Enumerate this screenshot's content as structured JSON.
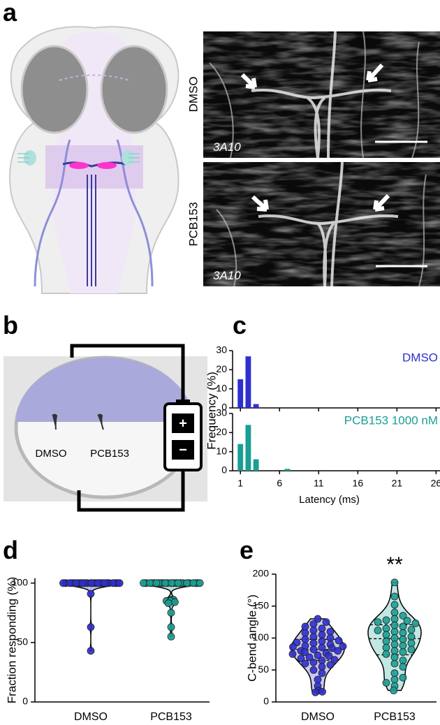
{
  "panel_labels": [
    "a",
    "b",
    "c",
    "d",
    "e"
  ],
  "panel_a": {
    "conditions": [
      "DMSO",
      "PCB153"
    ],
    "stain": "3A10"
  },
  "panel_b": {
    "fish": [
      "DMSO",
      "PCB153"
    ],
    "battery": [
      "+",
      "−"
    ]
  },
  "chart_data": [
    {
      "type": "bar",
      "xlabel": "Latency (ms)",
      "ylabel": "Frequency (%)",
      "xlim": [
        0,
        26.5
      ],
      "xticks": [
        1,
        6,
        11,
        16,
        21,
        26
      ],
      "ylim": [
        0,
        30
      ],
      "yticks": [
        0,
        10,
        20,
        30
      ],
      "series": [
        {
          "name": "DMSO",
          "color": "#2f2fd0",
          "x": [
            1,
            2,
            3
          ],
          "values": [
            15,
            27,
            2
          ]
        },
        {
          "name": "PCB153 1000 nM",
          "color": "#1a9e94",
          "x": [
            1,
            2,
            3,
            7
          ],
          "values": [
            14,
            24,
            6,
            1
          ]
        }
      ]
    },
    {
      "type": "violin",
      "ylabel": "Fraction responding (%)",
      "categories": [
        "DMSO",
        "PCB153"
      ],
      "ylim": [
        0,
        104
      ],
      "yticks": [
        0,
        50,
        100
      ],
      "series": [
        {
          "color": "#2f2fd0",
          "fill": "#b9b9ee",
          "values": [
            100,
            100,
            100,
            100,
            100,
            100,
            100,
            100,
            100,
            100,
            100,
            100,
            100,
            100,
            100,
            100,
            100,
            100,
            100,
            100,
            100,
            100,
            100,
            100,
            100,
            100,
            100,
            100,
            100,
            100,
            91,
            63,
            43
          ]
        },
        {
          "color": "#1a9e94",
          "fill": "#b5e2dd",
          "values": [
            100,
            100,
            100,
            100,
            100,
            100,
            100,
            100,
            100,
            100,
            100,
            100,
            100,
            100,
            100,
            100,
            100,
            100,
            100,
            100,
            100,
            100,
            100,
            100,
            100,
            100,
            100,
            100,
            86,
            86,
            85,
            85,
            84,
            83,
            75,
            63,
            55
          ]
        }
      ]
    },
    {
      "type": "violin",
      "ylabel": "C-bend angle (°)",
      "categories": [
        "DMSO",
        "PCB153"
      ],
      "ylim": [
        0,
        200
      ],
      "yticks": [
        0,
        50,
        100,
        150,
        200
      ],
      "annotations": [
        {
          "category": 1,
          "text": "**"
        }
      ],
      "series": [
        {
          "color": "#2f2fd0",
          "fill": "#c9c9f2",
          "values": [
            130,
            125,
            122,
            118,
            115,
            112,
            110,
            108,
            105,
            102,
            100,
            98,
            96,
            95,
            93,
            92,
            90,
            88,
            87,
            86,
            85,
            84,
            82,
            80,
            80,
            78,
            76,
            75,
            73,
            72,
            70,
            68,
            66,
            65,
            62,
            60,
            58,
            55,
            50,
            45,
            35,
            25,
            18,
            16,
            15
          ]
        },
        {
          "color": "#1a9e94",
          "fill": "#c3e8e4",
          "values": [
            187,
            165,
            152,
            140,
            135,
            130,
            128,
            127,
            125,
            123,
            120,
            118,
            115,
            113,
            112,
            110,
            108,
            105,
            102,
            100,
            98,
            95,
            92,
            90,
            88,
            85,
            82,
            80,
            78,
            75,
            70,
            65,
            60,
            55,
            45,
            38,
            35,
            30,
            25,
            18
          ]
        }
      ]
    }
  ]
}
